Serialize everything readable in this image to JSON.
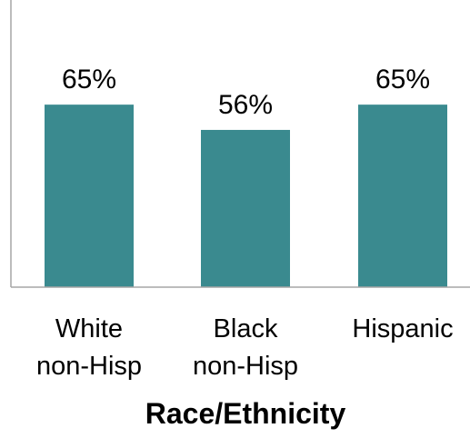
{
  "chart_data": {
    "type": "bar",
    "categories": [
      "White non-Hisp",
      "Black non-Hisp",
      "Hispanic"
    ],
    "category_label_lines": [
      [
        "White",
        "non-Hisp"
      ],
      [
        "Black",
        "non-Hisp"
      ],
      [
        "Hispanic"
      ]
    ],
    "values": [
      65,
      56,
      65
    ],
    "data_labels": [
      "65%",
      "56%",
      "65%"
    ],
    "xlabel": "Race/Ethnicity",
    "ylabel": "",
    "ylim": [
      0,
      100
    ],
    "grid": false,
    "bar_color": "#3a8a8f",
    "axis_color": "#a6a6a6"
  }
}
